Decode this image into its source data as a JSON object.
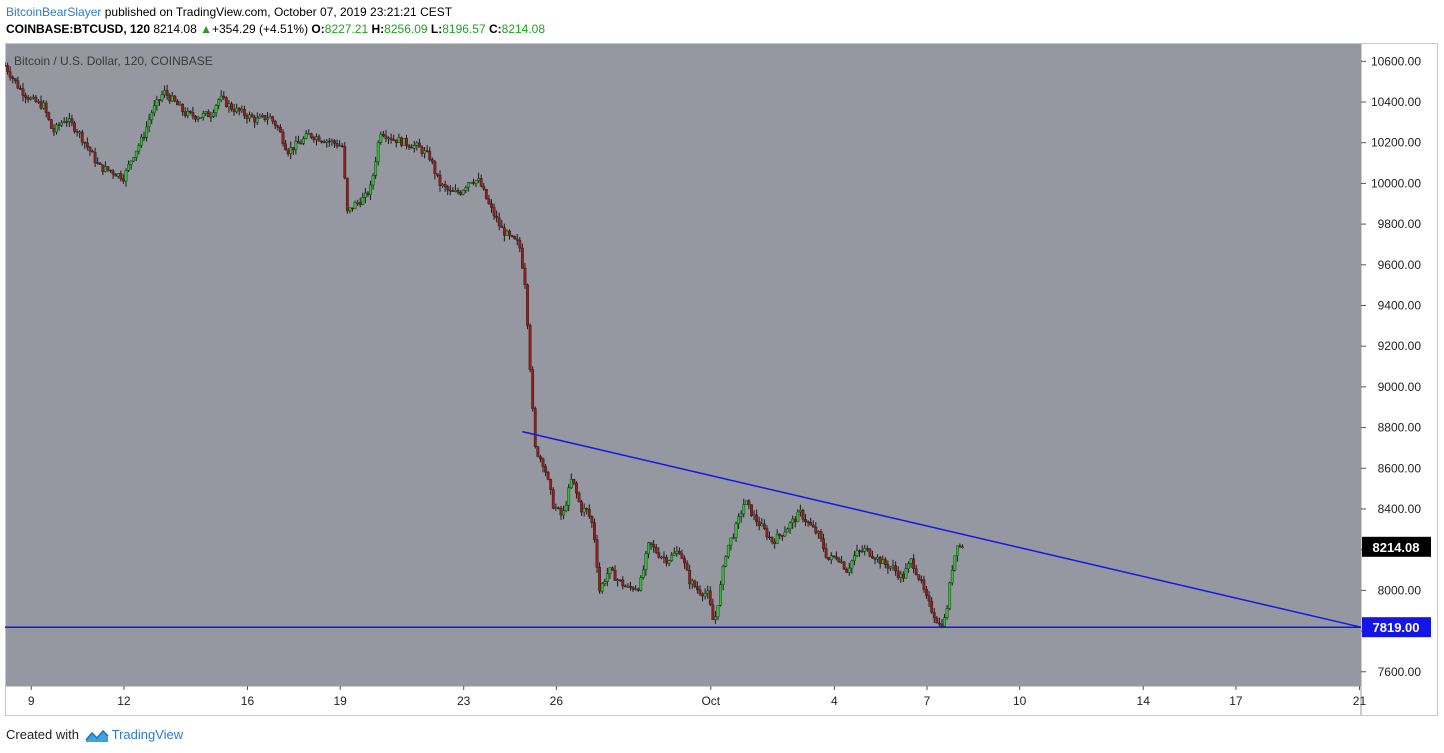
{
  "header": {
    "author": "BitcoinBearSlayer",
    "published_text": "published on TradingView.com, October 07, 2019 23:21:21 CEST",
    "symbol": "COINBASE:BTCUSD, 120",
    "last": "8214.08",
    "change": "+354.29 (+4.51%)",
    "open_label": "O:",
    "open": "8227.21",
    "high_label": "H:",
    "high": "8256.09",
    "low_label": "L:",
    "low": "8196.57",
    "close_label": "C:",
    "close": "8214.08"
  },
  "footer": {
    "created_with": "Created with",
    "brand": "TradingView",
    "logo_icon": "tradingview-logo-icon"
  },
  "colors": {
    "plot_bg": "#9598a1",
    "axis_bg": "#ffffff",
    "up": "#26a69a",
    "up_fill": "#2fc22f",
    "down": "#ef5350",
    "down_fill": "#9b1b1b",
    "trend": "#1515e6",
    "last_badge": "#000000",
    "level_badge": "#1515e6"
  },
  "chart_data": {
    "type": "candlestick",
    "title": "Bitcoin / U.S. Dollar, 120, COINBASE",
    "y_ticks": [
      "10600.00",
      "10400.00",
      "10200.00",
      "10000.00",
      "9800.00",
      "9600.00",
      "9400.00",
      "9200.00",
      "9000.00",
      "8800.00",
      "8600.00",
      "8400.00",
      "8200.00",
      "8000.00",
      "7800.00",
      "7600.00"
    ],
    "ylim": [
      7530,
      10690
    ],
    "x_ticks": [
      {
        "label": "9",
        "day": 9
      },
      {
        "label": "12",
        "day": 12
      },
      {
        "label": "16",
        "day": 16
      },
      {
        "label": "19",
        "day": 19
      },
      {
        "label": "23",
        "day": 23
      },
      {
        "label": "26",
        "day": 26
      },
      {
        "label": "Oct",
        "day": 31
      },
      {
        "label": "4",
        "day": 35
      },
      {
        "label": "7",
        "day": 38
      },
      {
        "label": "10",
        "day": 41
      },
      {
        "label": "14",
        "day": 45
      },
      {
        "label": "17",
        "day": 48
      },
      {
        "label": "21",
        "day": 52
      }
    ],
    "xlim": [
      8.15,
      52.05
    ],
    "last_price": {
      "value": 8214.08,
      "label": "8214.08"
    },
    "horizontal_level": {
      "value": 7819.0,
      "label": "7819.00"
    },
    "trendline": {
      "from": {
        "day": 24.9,
        "price": 8780
      },
      "to": {
        "day": 52.05,
        "price": 7819
      }
    },
    "price_path": [
      [
        8.15,
        10580
      ],
      [
        8.6,
        10470
      ],
      [
        9.0,
        10410
      ],
      [
        9.4,
        10380
      ],
      [
        9.7,
        10250
      ],
      [
        10.1,
        10320
      ],
      [
        10.5,
        10260
      ],
      [
        10.9,
        10160
      ],
      [
        11.2,
        10080
      ],
      [
        11.6,
        10060
      ],
      [
        12.0,
        10030
      ],
      [
        12.3,
        10140
      ],
      [
        12.6,
        10220
      ],
      [
        12.9,
        10350
      ],
      [
        13.3,
        10450
      ],
      [
        13.7,
        10390
      ],
      [
        14.0,
        10340
      ],
      [
        14.4,
        10330
      ],
      [
        14.8,
        10340
      ],
      [
        15.1,
        10420
      ],
      [
        15.5,
        10370
      ],
      [
        15.9,
        10340
      ],
      [
        16.3,
        10310
      ],
      [
        16.7,
        10330
      ],
      [
        17.0,
        10270
      ],
      [
        17.3,
        10160
      ],
      [
        17.7,
        10200
      ],
      [
        18.0,
        10240
      ],
      [
        18.4,
        10220
      ],
      [
        18.8,
        10200
      ],
      [
        19.1,
        10180
      ],
      [
        19.2,
        9850
      ],
      [
        19.5,
        9900
      ],
      [
        19.8,
        9930
      ],
      [
        20.0,
        9980
      ],
      [
        20.3,
        10260
      ],
      [
        20.7,
        10220
      ],
      [
        21.1,
        10200
      ],
      [
        21.5,
        10180
      ],
      [
        21.9,
        10130
      ],
      [
        22.2,
        10000
      ],
      [
        22.6,
        9950
      ],
      [
        22.9,
        9960
      ],
      [
        23.2,
        10020
      ],
      [
        23.5,
        10010
      ],
      [
        23.8,
        9900
      ],
      [
        24.2,
        9780
      ],
      [
        24.5,
        9730
      ],
      [
        24.8,
        9700
      ],
      [
        25.0,
        9500
      ],
      [
        25.15,
        9100
      ],
      [
        25.3,
        8700
      ],
      [
        25.6,
        8620
      ],
      [
        25.9,
        8420
      ],
      [
        26.2,
        8360
      ],
      [
        26.5,
        8550
      ],
      [
        26.8,
        8400
      ],
      [
        27.0,
        8390
      ],
      [
        27.2,
        8310
      ],
      [
        27.4,
        8000
      ],
      [
        27.7,
        8100
      ],
      [
        28.0,
        8050
      ],
      [
        28.3,
        8010
      ],
      [
        28.7,
        8020
      ],
      [
        29.0,
        8230
      ],
      [
        29.3,
        8180
      ],
      [
        29.6,
        8150
      ],
      [
        30.0,
        8200
      ],
      [
        30.3,
        8050
      ],
      [
        30.6,
        8000
      ],
      [
        30.9,
        7980
      ],
      [
        31.1,
        7830
      ],
      [
        31.3,
        8000
      ],
      [
        31.5,
        8200
      ],
      [
        31.8,
        8300
      ],
      [
        32.1,
        8440
      ],
      [
        32.4,
        8360
      ],
      [
        32.7,
        8300
      ],
      [
        33.0,
        8240
      ],
      [
        33.3,
        8280
      ],
      [
        33.6,
        8330
      ],
      [
        33.9,
        8380
      ],
      [
        34.2,
        8320
      ],
      [
        34.5,
        8270
      ],
      [
        34.8,
        8150
      ],
      [
        35.1,
        8170
      ],
      [
        35.4,
        8100
      ],
      [
        35.7,
        8180
      ],
      [
        36.0,
        8200
      ],
      [
        36.3,
        8170
      ],
      [
        36.6,
        8130
      ],
      [
        36.9,
        8110
      ],
      [
        37.2,
        8060
      ],
      [
        37.5,
        8150
      ],
      [
        37.8,
        8040
      ],
      [
        38.0,
        7950
      ],
      [
        38.2,
        7890
      ],
      [
        38.4,
        7830
      ],
      [
        38.6,
        7860
      ],
      [
        38.8,
        8100
      ],
      [
        39.0,
        8250
      ],
      [
        39.15,
        8214
      ]
    ]
  }
}
